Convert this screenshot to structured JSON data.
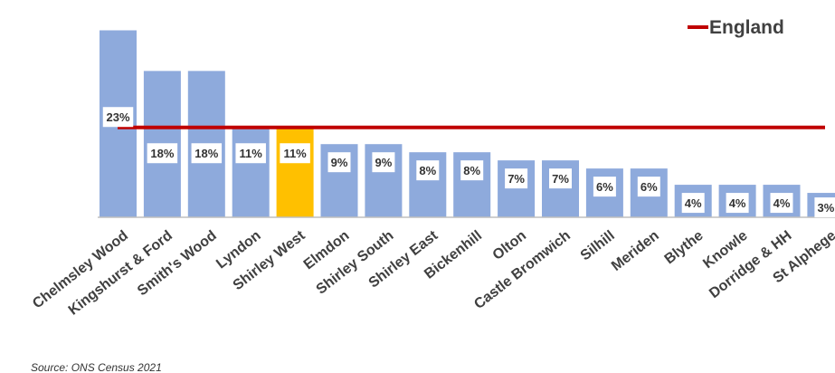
{
  "chart_data": {
    "type": "bar",
    "categories": [
      "Chelmsley Wood",
      "Kingshurst & Ford",
      "Smith's Wood",
      "Lyndon",
      "Shirley West",
      "Elmdon",
      "Shirley South",
      "Shirley East",
      "Bickenhill",
      "Olton",
      "Castle Bromwich",
      "Silhill",
      "Meriden",
      "Blythe",
      "Knowle",
      "Dorridge & HH",
      "St Alphege"
    ],
    "values": [
      23,
      18,
      18,
      11,
      11,
      9,
      9,
      8,
      8,
      7,
      7,
      6,
      6,
      4,
      4,
      4,
      3
    ],
    "value_labels": [
      "23%",
      "18%",
      "18%",
      "11%",
      "11%",
      "9%",
      "9%",
      "8%",
      "8%",
      "7%",
      "7%",
      "6%",
      "6%",
      "4%",
      "4%",
      "4%",
      "3%"
    ],
    "highlight_category": "Shirley West",
    "reference_line": {
      "name": "England",
      "value": 11
    },
    "legend": {
      "label": "England",
      "placement": "top-right"
    },
    "ylim": [
      0,
      23.5
    ],
    "grid": false,
    "colors": {
      "bar": "#8eaadc",
      "highlight": "#ffc000",
      "reference": "#c00000",
      "axis": "#bfbfbf"
    }
  },
  "source_note": "Source: ONS Census 2021"
}
